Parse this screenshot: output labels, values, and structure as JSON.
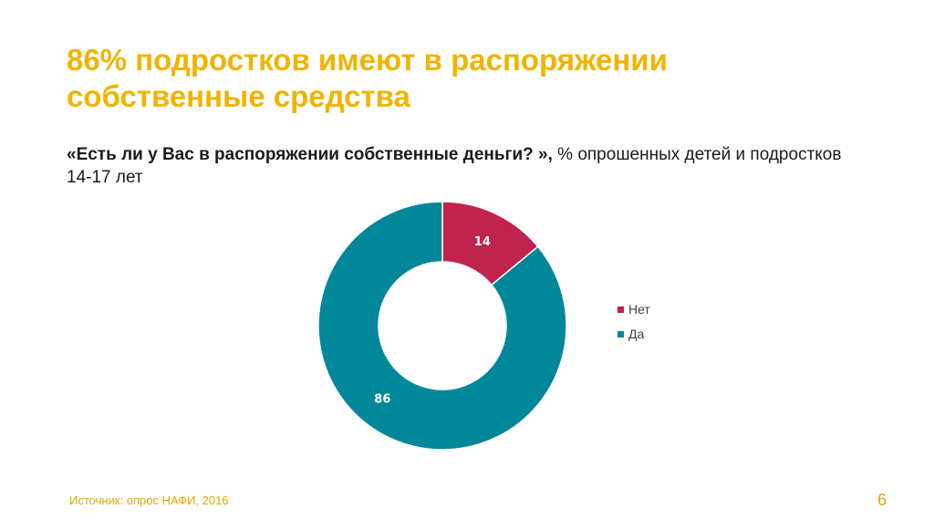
{
  "slide": {
    "title": "86% подростков имеют в распоряжении собственные средства",
    "subtitle_question": "«Есть ли у Вас в распоряжении собственные деньги? »,",
    "subtitle_rest": " % опрошенных детей и подростков 14-17 лет",
    "source": "Источник: опрос НАФИ, 2016",
    "page_number": "6"
  },
  "chart_data": {
    "type": "pie",
    "hole": true,
    "categories": [
      "Нет",
      "Да"
    ],
    "values": [
      14,
      86
    ],
    "colors": [
      "#c0234d",
      "#00889a"
    ],
    "data_labels": [
      "14",
      "86"
    ],
    "legend": {
      "position": "right",
      "entries": [
        "Нет",
        "Да"
      ]
    }
  }
}
